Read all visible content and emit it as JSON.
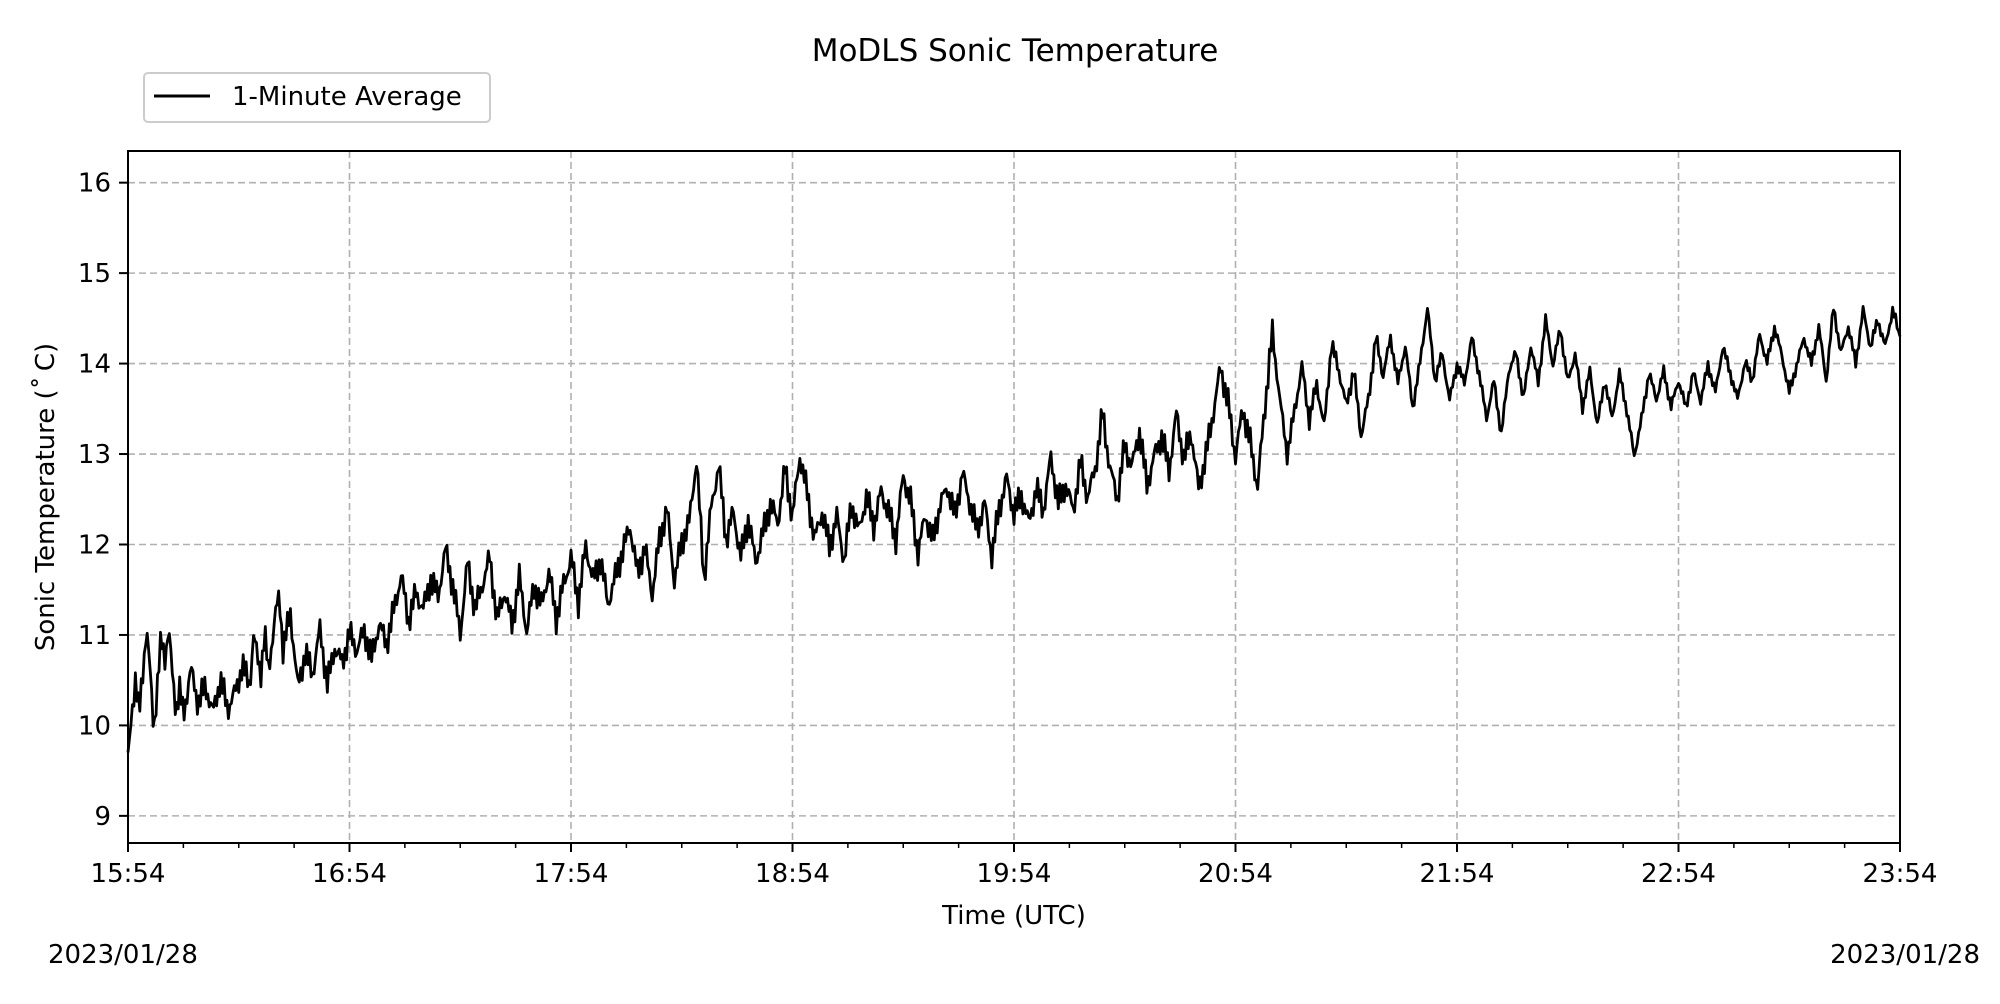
{
  "chart_data": {
    "type": "line",
    "title": "MoDLS Sonic Temperature",
    "xlabel": "Time (UTC)",
    "ylabel": "Sonic Temperature ($^\\circ$C)",
    "ylabel_display": "Sonic Temperature (˚ C)",
    "x_ticks": [
      "15:54",
      "16:54",
      "17:54",
      "18:54",
      "19:54",
      "20:54",
      "21:54",
      "22:54",
      "23:54"
    ],
    "x_range_minutes": [
      0,
      480
    ],
    "y_ticks": [
      9,
      10,
      11,
      12,
      13,
      14,
      15,
      16
    ],
    "ylim": [
      8.7,
      16.35
    ],
    "grid": true,
    "legend_placement": "top-left, above plot",
    "date_start": "2023/01/28",
    "date_end": "2023/01/28",
    "series": [
      {
        "name": "1-Minute Average",
        "color": "#000000",
        "anchors": [
          [
            0,
            9.7
          ],
          [
            1,
            10.1
          ],
          [
            2,
            10.5
          ],
          [
            3,
            10.1
          ],
          [
            4,
            10.6
          ],
          [
            5,
            11.1
          ],
          [
            6,
            10.6
          ],
          [
            7,
            10.0
          ],
          [
            8,
            10.5
          ],
          [
            9,
            11.0
          ],
          [
            10,
            10.8
          ],
          [
            11,
            11.1
          ],
          [
            12,
            10.6
          ],
          [
            13,
            10.2
          ],
          [
            14,
            10.4
          ],
          [
            15,
            10.1
          ],
          [
            17,
            10.6
          ],
          [
            19,
            10.2
          ],
          [
            21,
            10.4
          ],
          [
            23,
            10.1
          ],
          [
            25,
            10.5
          ],
          [
            27,
            10.2
          ],
          [
            29,
            10.4
          ],
          [
            31,
            10.7
          ],
          [
            33,
            10.5
          ],
          [
            34,
            11.0
          ],
          [
            36,
            10.6
          ],
          [
            37,
            11.0
          ],
          [
            38,
            10.6
          ],
          [
            40,
            11.2
          ],
          [
            41,
            11.4
          ],
          [
            42,
            10.8
          ],
          [
            44,
            11.2
          ],
          [
            46,
            10.4
          ],
          [
            48,
            10.8
          ],
          [
            50,
            10.6
          ],
          [
            52,
            11.1
          ],
          [
            54,
            10.5
          ],
          [
            56,
            10.9
          ],
          [
            58,
            10.7
          ],
          [
            60,
            11.0
          ],
          [
            62,
            10.8
          ],
          [
            64,
            11.0
          ],
          [
            66,
            10.7
          ],
          [
            68,
            11.1
          ],
          [
            70,
            10.9
          ],
          [
            72,
            11.3
          ],
          [
            74,
            11.7
          ],
          [
            76,
            11.2
          ],
          [
            78,
            11.5
          ],
          [
            80,
            11.3
          ],
          [
            82,
            11.6
          ],
          [
            84,
            11.4
          ],
          [
            86,
            11.9
          ],
          [
            88,
            11.5
          ],
          [
            90,
            11.0
          ],
          [
            92,
            11.8
          ],
          [
            94,
            11.3
          ],
          [
            96,
            11.6
          ],
          [
            98,
            11.9
          ],
          [
            100,
            11.2
          ],
          [
            102,
            11.5
          ],
          [
            104,
            11.1
          ],
          [
            106,
            11.6
          ],
          [
            108,
            11.0
          ],
          [
            110,
            11.5
          ],
          [
            112,
            11.3
          ],
          [
            114,
            11.7
          ],
          [
            116,
            11.2
          ],
          [
            118,
            11.6
          ],
          [
            120,
            11.9
          ],
          [
            122,
            11.4
          ],
          [
            124,
            12.0
          ],
          [
            126,
            11.6
          ],
          [
            128,
            11.8
          ],
          [
            130,
            11.3
          ],
          [
            132,
            11.6
          ],
          [
            134,
            11.9
          ],
          [
            136,
            12.2
          ],
          [
            138,
            11.7
          ],
          [
            140,
            12.0
          ],
          [
            142,
            11.5
          ],
          [
            144,
            12.1
          ],
          [
            146,
            12.4
          ],
          [
            148,
            11.6
          ],
          [
            150,
            12.0
          ],
          [
            152,
            12.2
          ],
          [
            154,
            12.9
          ],
          [
            156,
            11.6
          ],
          [
            158,
            12.4
          ],
          [
            160,
            12.9
          ],
          [
            162,
            12.1
          ],
          [
            164,
            12.4
          ],
          [
            166,
            11.9
          ],
          [
            168,
            12.3
          ],
          [
            170,
            11.8
          ],
          [
            172,
            12.1
          ],
          [
            174,
            12.4
          ],
          [
            176,
            12.2
          ],
          [
            178,
            12.8
          ],
          [
            180,
            12.3
          ],
          [
            182,
            13.0
          ],
          [
            184,
            12.6
          ],
          [
            186,
            12.1
          ],
          [
            188,
            12.4
          ],
          [
            190,
            12.0
          ],
          [
            192,
            12.3
          ],
          [
            194,
            11.8
          ],
          [
            196,
            12.4
          ],
          [
            198,
            12.1
          ],
          [
            200,
            12.5
          ],
          [
            202,
            12.2
          ],
          [
            204,
            12.6
          ],
          [
            206,
            12.4
          ],
          [
            208,
            12.1
          ],
          [
            210,
            12.8
          ],
          [
            212,
            12.5
          ],
          [
            214,
            11.9
          ],
          [
            216,
            12.3
          ],
          [
            218,
            12.0
          ],
          [
            220,
            12.4
          ],
          [
            222,
            12.6
          ],
          [
            224,
            12.3
          ],
          [
            226,
            12.8
          ],
          [
            228,
            12.5
          ],
          [
            230,
            12.2
          ],
          [
            232,
            12.5
          ],
          [
            234,
            11.9
          ],
          [
            236,
            12.4
          ],
          [
            238,
            12.7
          ],
          [
            240,
            12.3
          ],
          [
            242,
            12.5
          ],
          [
            244,
            12.2
          ],
          [
            246,
            12.6
          ],
          [
            248,
            12.4
          ],
          [
            250,
            13.0
          ],
          [
            252,
            12.5
          ],
          [
            254,
            12.7
          ],
          [
            256,
            12.4
          ],
          [
            258,
            12.9
          ],
          [
            260,
            12.5
          ],
          [
            262,
            12.8
          ],
          [
            264,
            13.4
          ],
          [
            266,
            12.8
          ],
          [
            268,
            12.5
          ],
          [
            270,
            13.1
          ],
          [
            272,
            12.9
          ],
          [
            274,
            13.3
          ],
          [
            276,
            12.7
          ],
          [
            278,
            13.0
          ],
          [
            280,
            13.2
          ],
          [
            282,
            12.8
          ],
          [
            284,
            13.4
          ],
          [
            286,
            12.9
          ],
          [
            288,
            13.2
          ],
          [
            290,
            12.6
          ],
          [
            292,
            13.0
          ],
          [
            294,
            13.5
          ],
          [
            296,
            14.0
          ],
          [
            298,
            13.6
          ],
          [
            300,
            13.0
          ],
          [
            302,
            13.5
          ],
          [
            304,
            13.1
          ],
          [
            306,
            12.6
          ],
          [
            308,
            13.5
          ],
          [
            310,
            14.3
          ],
          [
            312,
            13.6
          ],
          [
            314,
            13.0
          ],
          [
            316,
            13.5
          ],
          [
            318,
            14.0
          ],
          [
            320,
            13.4
          ],
          [
            322,
            13.8
          ],
          [
            324,
            13.3
          ],
          [
            326,
            14.2
          ],
          [
            328,
            13.9
          ],
          [
            330,
            13.5
          ],
          [
            332,
            13.9
          ],
          [
            334,
            13.2
          ],
          [
            336,
            13.6
          ],
          [
            338,
            14.3
          ],
          [
            340,
            13.9
          ],
          [
            342,
            14.3
          ],
          [
            344,
            13.8
          ],
          [
            346,
            14.2
          ],
          [
            348,
            13.5
          ],
          [
            350,
            14.0
          ],
          [
            352,
            14.6
          ],
          [
            354,
            13.8
          ],
          [
            356,
            14.1
          ],
          [
            358,
            13.6
          ],
          [
            360,
            14.0
          ],
          [
            362,
            13.8
          ],
          [
            364,
            14.3
          ],
          [
            366,
            13.9
          ],
          [
            368,
            13.4
          ],
          [
            370,
            13.8
          ],
          [
            372,
            13.2
          ],
          [
            374,
            13.9
          ],
          [
            376,
            14.1
          ],
          [
            378,
            13.6
          ],
          [
            380,
            14.2
          ],
          [
            382,
            13.8
          ],
          [
            384,
            14.5
          ],
          [
            386,
            14.0
          ],
          [
            388,
            14.4
          ],
          [
            390,
            13.8
          ],
          [
            392,
            14.1
          ],
          [
            394,
            13.5
          ],
          [
            396,
            13.9
          ],
          [
            398,
            13.3
          ],
          [
            400,
            13.8
          ],
          [
            402,
            13.4
          ],
          [
            404,
            13.9
          ],
          [
            406,
            13.5
          ],
          [
            408,
            13.0
          ],
          [
            410,
            13.4
          ],
          [
            412,
            13.9
          ],
          [
            414,
            13.6
          ],
          [
            416,
            13.9
          ],
          [
            418,
            13.5
          ],
          [
            420,
            13.8
          ],
          [
            422,
            13.5
          ],
          [
            424,
            13.9
          ],
          [
            426,
            13.6
          ],
          [
            428,
            14.0
          ],
          [
            430,
            13.7
          ],
          [
            432,
            14.2
          ],
          [
            434,
            13.9
          ],
          [
            436,
            13.6
          ],
          [
            438,
            14.0
          ],
          [
            440,
            13.8
          ],
          [
            442,
            14.3
          ],
          [
            444,
            14.0
          ],
          [
            446,
            14.4
          ],
          [
            448,
            14.1
          ],
          [
            450,
            13.7
          ],
          [
            452,
            14.0
          ],
          [
            454,
            14.3
          ],
          [
            456,
            14.0
          ],
          [
            458,
            14.4
          ],
          [
            460,
            13.8
          ],
          [
            462,
            14.6
          ],
          [
            464,
            14.1
          ],
          [
            466,
            14.4
          ],
          [
            468,
            14.0
          ],
          [
            470,
            14.6
          ],
          [
            472,
            14.2
          ],
          [
            474,
            14.5
          ],
          [
            476,
            14.2
          ],
          [
            478,
            14.6
          ],
          [
            480,
            14.3
          ]
        ]
      }
    ]
  }
}
